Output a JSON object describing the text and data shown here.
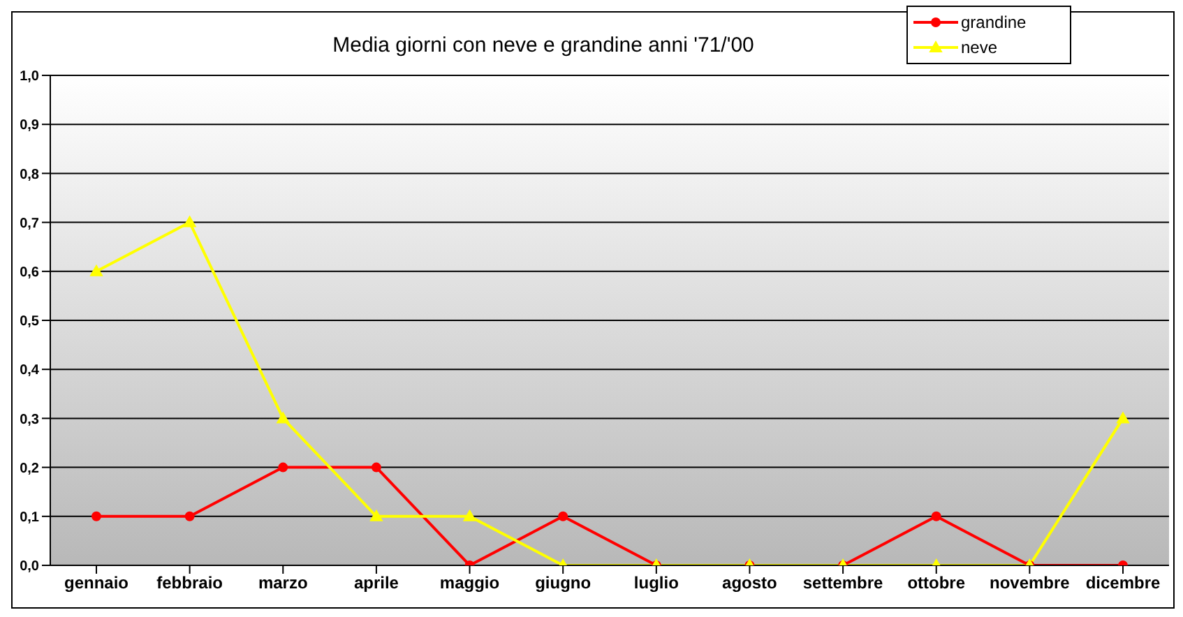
{
  "chart_data": {
    "type": "line",
    "title": "Media giorni con neve e grandine anni '71/'00",
    "categories": [
      "gennaio",
      "febbraio",
      "marzo",
      "aprile",
      "maggio",
      "giugno",
      "luglio",
      "agosto",
      "settembre",
      "ottobre",
      "novembre",
      "dicembre"
    ],
    "series": [
      {
        "name": "grandine",
        "color": "#ff0000",
        "marker": "circle",
        "values": [
          0.1,
          0.1,
          0.2,
          0.2,
          0,
          0.1,
          0,
          0,
          0,
          0.1,
          0,
          0
        ]
      },
      {
        "name": "neve",
        "color": "#ffff00",
        "marker": "triangle",
        "values": [
          0.6,
          0.7,
          0.3,
          0.1,
          0.1,
          0,
          0,
          0,
          0,
          0,
          0,
          0.3
        ]
      }
    ],
    "ylim": [
      0,
      1
    ],
    "yticks": [
      {
        "value": 0,
        "label": "0,0"
      },
      {
        "value": 0.1,
        "label": "0,1"
      },
      {
        "value": 0.2,
        "label": "0,2"
      },
      {
        "value": 0.3,
        "label": "0,3"
      },
      {
        "value": 0.4,
        "label": "0,4"
      },
      {
        "value": 0.5,
        "label": "0,5"
      },
      {
        "value": 0.6,
        "label": "0,6"
      },
      {
        "value": 0.7,
        "label": "0,7"
      },
      {
        "value": 0.8,
        "label": "0,8"
      },
      {
        "value": 0.9,
        "label": "0,9"
      },
      {
        "value": 1,
        "label": "1,0"
      }
    ],
    "grid": "y",
    "legend": "top right"
  }
}
